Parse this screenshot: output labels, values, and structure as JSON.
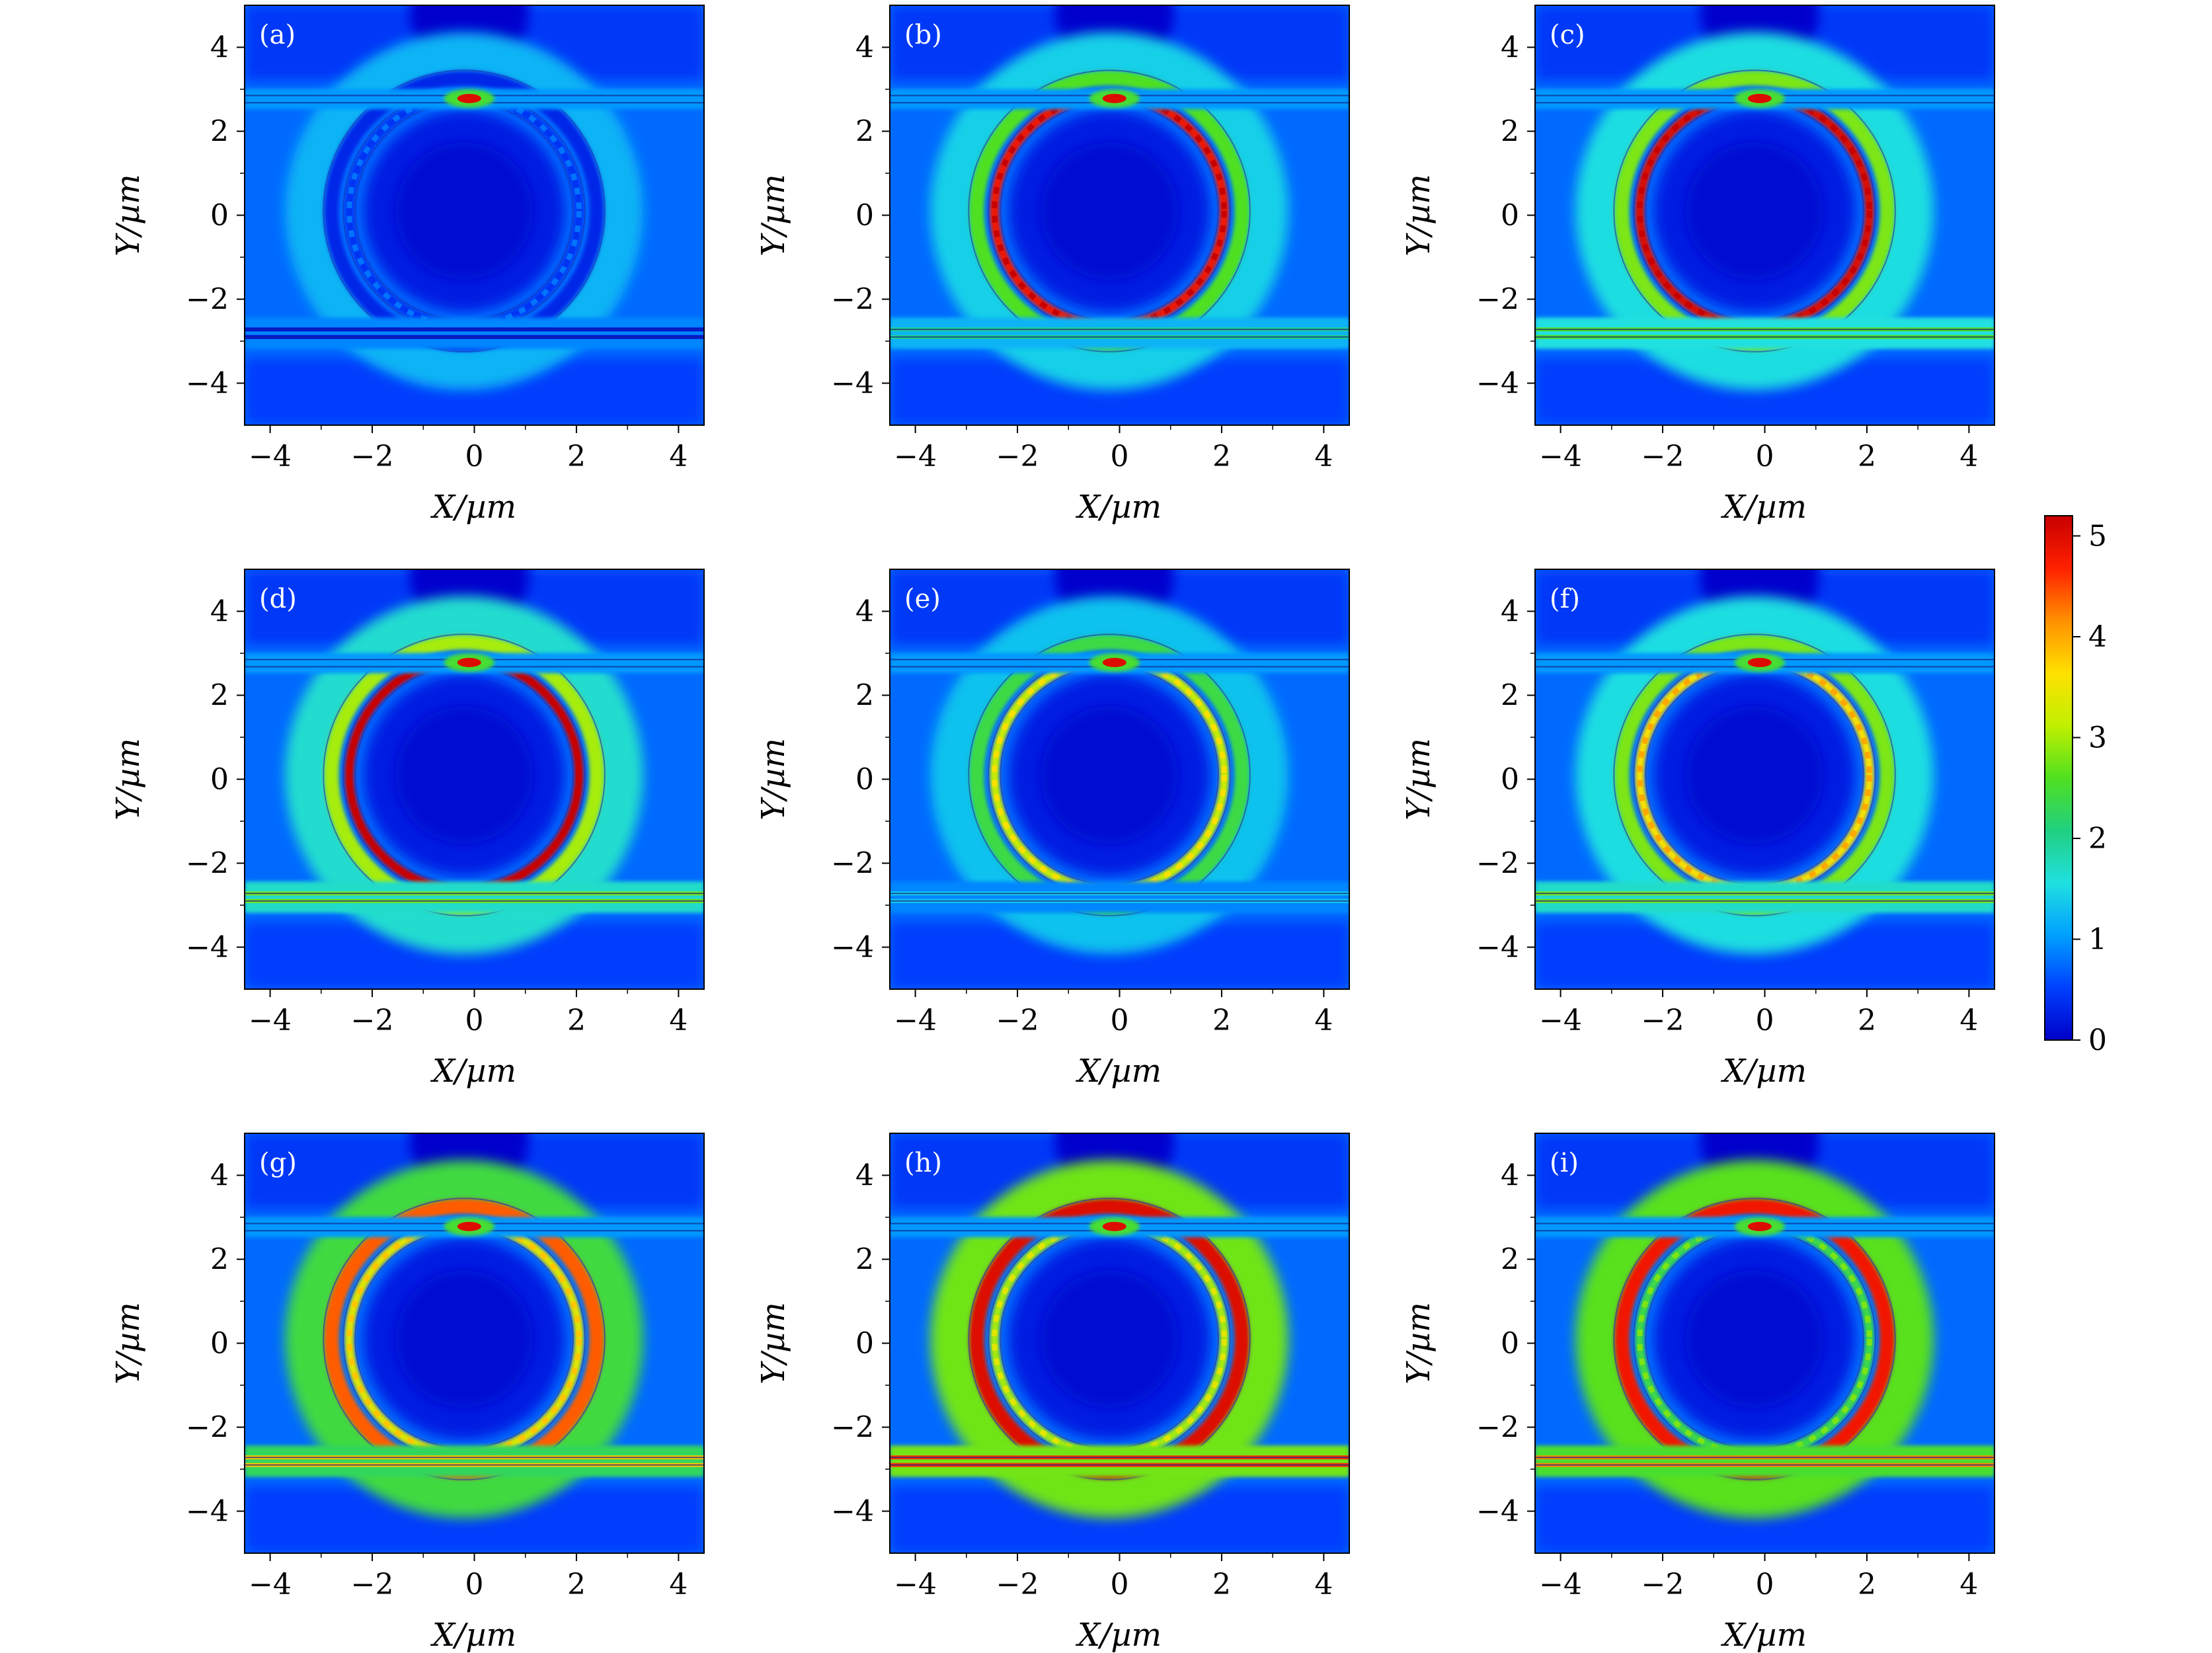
{
  "chart_data": {
    "type": "heatmap",
    "layout": "3x3 grid of field-intensity maps with one shared colorbar",
    "xlabel": "X/µm",
    "ylabel": "Y/µm",
    "xlim": [
      -4.5,
      4.5
    ],
    "ylim": [
      -5,
      5
    ],
    "xticks": [
      "−4",
      "−2",
      "0",
      "2",
      "4"
    ],
    "yticks": [
      "4",
      "2",
      "0",
      "−2",
      "−4"
    ],
    "colorbar": {
      "range": [
        0,
        5.2
      ],
      "ticks": [
        "0",
        "1",
        "2",
        "3",
        "4",
        "5"
      ],
      "colormap": [
        "#0000c8",
        "#0040ff",
        "#00a0ff",
        "#20e0e0",
        "#20d080",
        "#50e020",
        "#c0f000",
        "#ffe000",
        "#ff9000",
        "#ff2000",
        "#c80000"
      ]
    },
    "structure": {
      "ring_center_x": -0.2,
      "ring_center_y": 0.1,
      "ring_radii": [
        2.25,
        2.6
      ],
      "upper_waveguide_y": [
        2.68,
        2.85
      ],
      "lower_waveguide_y": [
        -2.72,
        -2.9
      ]
    },
    "panels": [
      {
        "label": "(a)",
        "ring_intensity": 0.4,
        "outer_ring_intensity": 0.3,
        "bus_intensity": 0.15,
        "top_hotspot": 5.0
      },
      {
        "label": "(b)",
        "ring_intensity": 4.8,
        "outer_ring_intensity": 2.6,
        "bus_intensity": 2.0,
        "top_hotspot": 5.0
      },
      {
        "label": "(c)",
        "ring_intensity": 5.0,
        "outer_ring_intensity": 2.8,
        "bus_intensity": 2.6,
        "top_hotspot": 5.0
      },
      {
        "label": "(d)",
        "ring_intensity": 5.2,
        "outer_ring_intensity": 3.0,
        "bus_intensity": 2.8,
        "top_hotspot": 5.0
      },
      {
        "label": "(e)",
        "ring_intensity": 3.2,
        "outer_ring_intensity": 2.4,
        "bus_intensity": 1.4,
        "top_hotspot": 5.0
      },
      {
        "label": "(f)",
        "ring_intensity": 3.6,
        "outer_ring_intensity": 2.8,
        "bus_intensity": 2.8,
        "top_hotspot": 5.0
      },
      {
        "label": "(g)",
        "ring_intensity": 3.4,
        "outer_ring_intensity": 4.4,
        "bus_intensity": 3.8,
        "top_hotspot": 5.0
      },
      {
        "label": "(h)",
        "ring_intensity": 3.0,
        "outer_ring_intensity": 5.0,
        "bus_intensity": 4.6,
        "top_hotspot": 5.0
      },
      {
        "label": "(i)",
        "ring_intensity": 2.4,
        "outer_ring_intensity": 4.8,
        "bus_intensity": 4.2,
        "top_hotspot": 5.0
      }
    ]
  }
}
